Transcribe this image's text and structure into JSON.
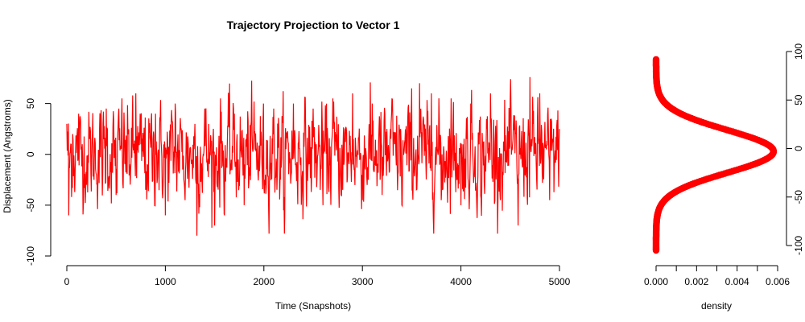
{
  "chart_data": [
    {
      "type": "line",
      "title": "Trajectory Projection to Vector 1",
      "xlabel": "Time (Snapshots)",
      "ylabel": "Displacement (Angstroms)",
      "xlim": [
        0,
        5000
      ],
      "ylim": [
        -100,
        60
      ],
      "xticks": [
        "0",
        "1000",
        "2000",
        "3000",
        "4000",
        "5000"
      ],
      "yticks": [
        "-100",
        "-50",
        "0",
        "50"
      ],
      "grid": false,
      "series": [
        {
          "color": "#ff0000",
          "n_points": 5000,
          "summary": {
            "mean": 0,
            "sd": 24,
            "min": -95,
            "max": 82
          },
          "x": [
            0,
            20,
            60,
            120,
            200,
            250,
            300,
            400,
            500,
            560,
            650,
            700,
            800,
            900,
            1000,
            1100,
            1200,
            1300,
            1320,
            1400,
            1500,
            1560,
            1600,
            1700,
            1800,
            1900,
            2000,
            2100,
            2200,
            2300,
            2400,
            2500,
            2600,
            2700,
            2800,
            2900,
            3000,
            3100,
            3200,
            3300,
            3400,
            3500,
            3550,
            3580,
            3610,
            3700,
            3800,
            3900,
            4000,
            4100,
            4200,
            4300,
            4400,
            4500,
            4580,
            4650,
            4700,
            4750,
            4800,
            4900,
            5000
          ],
          "y": [
            30,
            -60,
            20,
            40,
            -30,
            68,
            -20,
            45,
            -40,
            55,
            -50,
            60,
            -35,
            40,
            -60,
            50,
            -45,
            30,
            -80,
            45,
            -70,
            55,
            -60,
            40,
            -50,
            52,
            -30,
            45,
            -55,
            50,
            -40,
            45,
            -50,
            55,
            -35,
            60,
            -45,
            50,
            -40,
            55,
            -50,
            65,
            82,
            70,
            -95,
            60,
            -45,
            55,
            -50,
            50,
            -40,
            60,
            -45,
            55,
            -70,
            65,
            76,
            -40,
            60,
            -45,
            25
          ]
        }
      ]
    },
    {
      "type": "line",
      "xlabel": "density",
      "ylabel": "",
      "xlim": [
        0,
        0.006
      ],
      "ylim": [
        -100,
        100
      ],
      "xticks": [
        "0.000",
        "0.002",
        "0.004",
        "0.006"
      ],
      "yticks": [
        "-100",
        "-50",
        "0",
        "50",
        "100"
      ],
      "yaxis_side": "right",
      "grid": false,
      "series": [
        {
          "color": "#ff0000",
          "marker": "filled-circle",
          "note": "kernel density of displacement, plotted vertically",
          "density_peak": 0.0058,
          "mode": -3,
          "range": [
            -105,
            92
          ]
        }
      ]
    }
  ]
}
